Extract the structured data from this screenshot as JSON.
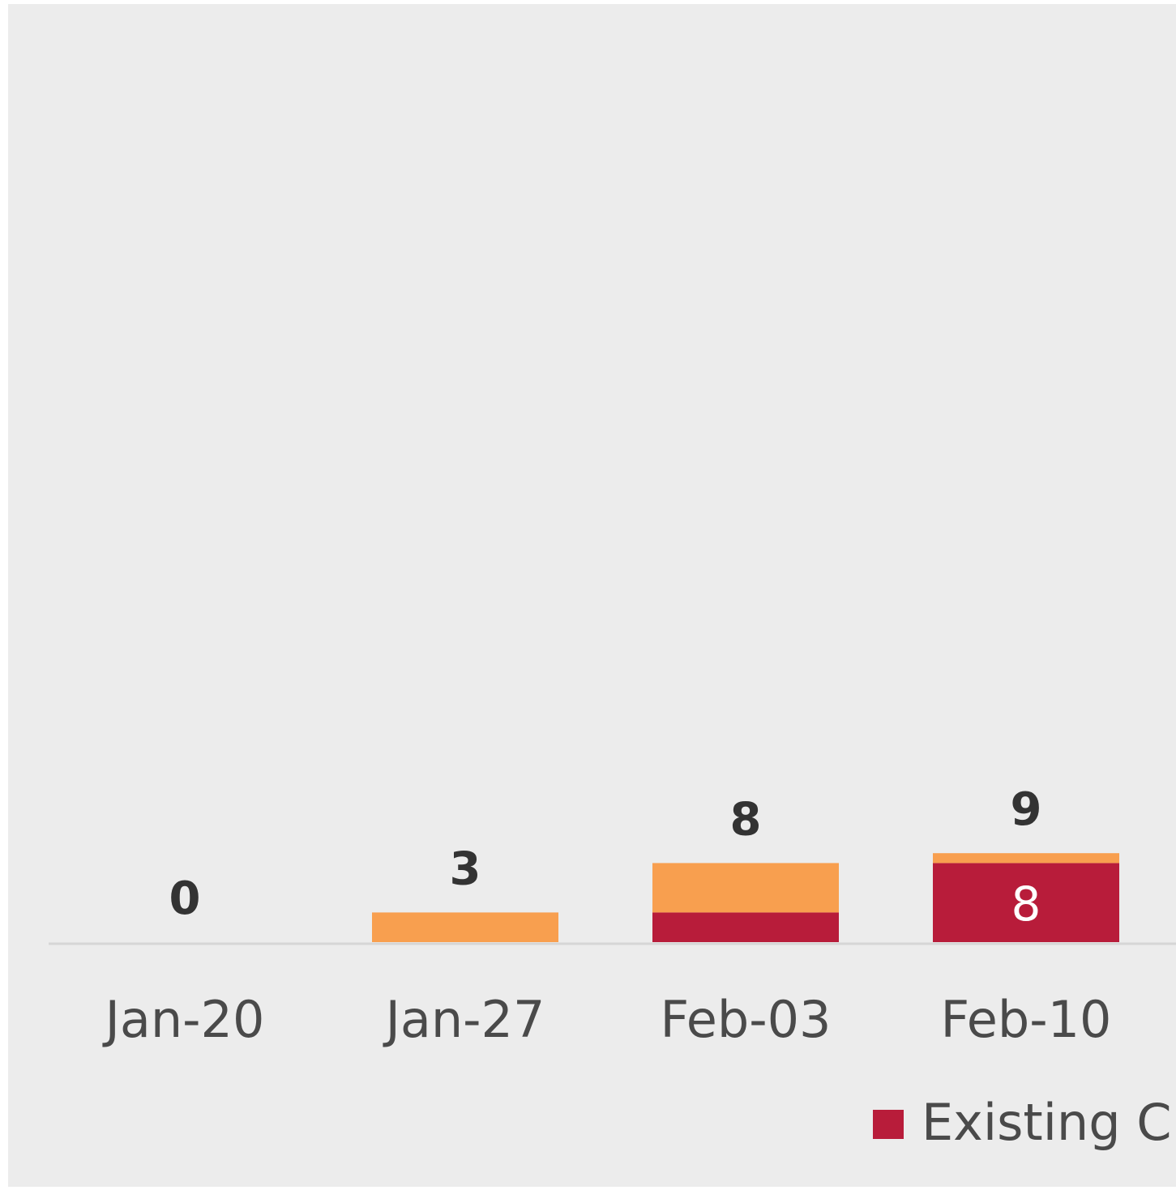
{
  "chart_data": {
    "type": "bar",
    "stacked": true,
    "categories": [
      "Jan-20",
      "Jan-27",
      "Feb-03",
      "Feb-10"
    ],
    "series": [
      {
        "name": "Existing Cl",
        "color": "#b81c3a",
        "values": [
          0,
          0,
          3,
          8
        ],
        "value_labels": [
          "",
          "",
          "",
          "8"
        ]
      },
      {
        "color": "#f89f4f",
        "values": [
          0,
          3,
          5,
          1
        ],
        "value_labels": [
          "",
          "",
          "",
          ""
        ]
      }
    ],
    "totals": [
      "0",
      "3",
      "8",
      "9"
    ],
    "legend": {
      "position": "bottom-right",
      "label": "Existing Cl",
      "color": "#b81c3a"
    },
    "grid": false,
    "title": "",
    "xlabel": "",
    "ylabel": ""
  }
}
